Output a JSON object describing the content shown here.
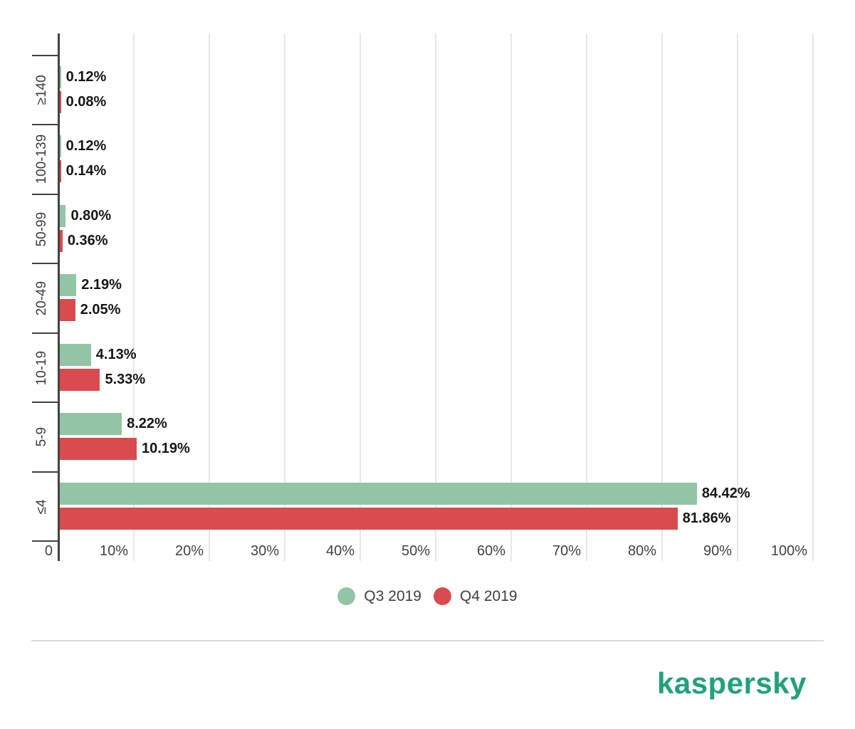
{
  "chart_data": {
    "type": "bar",
    "orientation": "horizontal",
    "title": "",
    "xlabel": "",
    "ylabel": "",
    "grid": true,
    "legend_position": "bottom",
    "categories": [
      "≥140",
      "100-139",
      "50-99",
      "20-49",
      "10-19",
      "5-9",
      "≤4"
    ],
    "series": [
      {
        "name": "Q3 2019",
        "color": "#92C5A4",
        "values": [
          0.12,
          0.12,
          0.8,
          2.19,
          4.13,
          8.22,
          84.42
        ],
        "labels": [
          "0.12%",
          "0.12%",
          "0.80%",
          "2.19%",
          "4.13%",
          "8.22%",
          "84.42%"
        ]
      },
      {
        "name": "Q4 2019",
        "color": "#D94B4F",
        "values": [
          0.08,
          0.14,
          0.36,
          2.05,
          5.33,
          10.19,
          81.86
        ],
        "labels": [
          "0.08%",
          "0.14%",
          "0.36%",
          "2.05%",
          "5.33%",
          "10.19%",
          "81.86%"
        ]
      }
    ],
    "x_axis": {
      "range": [
        0,
        100
      ],
      "ticks": [
        0,
        10,
        20,
        30,
        40,
        50,
        60,
        70,
        80,
        90,
        100
      ],
      "tick_labels": [
        "0",
        "10%",
        "20%",
        "30%",
        "40%",
        "50%",
        "60%",
        "70%",
        "80%",
        "90%",
        "100%"
      ]
    }
  },
  "legend": {
    "items": [
      {
        "label": "Q3 2019",
        "color": "#92C5A4"
      },
      {
        "label": "Q4 2019",
        "color": "#D94B4F"
      }
    ]
  },
  "branding": {
    "logo_text": "kaspersky",
    "logo_color": "#21A17A"
  }
}
